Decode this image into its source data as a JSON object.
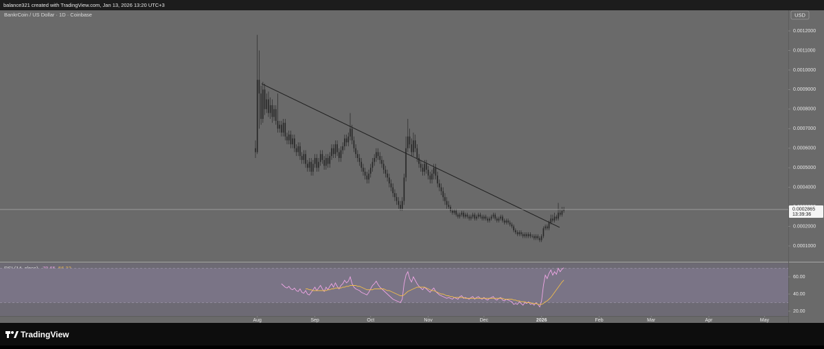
{
  "header": {
    "credit": "balance321 created with TradingView.com, Jan 13, 2026 13:20 UTC+3",
    "symbol": "BankrCoin / US Dollar · 1D · Coinbase",
    "currency": "USD",
    "brand": "TradingView"
  },
  "chart_data": [
    {
      "type": "candlestick",
      "color": "#262626",
      "xlim": [
        -137.5,
        286.8
      ],
      "xticks": [
        {
          "value": 1,
          "label": "Aug"
        },
        {
          "value": 32,
          "label": "Sep"
        },
        {
          "value": 62,
          "label": "Oct"
        },
        {
          "value": 93,
          "label": "Nov"
        },
        {
          "value": 123,
          "label": "Dec"
        },
        {
          "value": 154,
          "label": "2026"
        },
        {
          "value": 185,
          "label": "Feb"
        },
        {
          "value": 213,
          "label": "Mar"
        },
        {
          "value": 244,
          "label": "Apr"
        },
        {
          "value": 274,
          "label": "May"
        }
      ],
      "ylim": [
        2.27e-05,
        0.001302
      ],
      "yticks": [
        {
          "value": 0.0001,
          "label": "0.0001000"
        },
        {
          "value": 0.0002,
          "label": "0.0002000"
        },
        {
          "value": 0.0003,
          "label": "0.0003000"
        },
        {
          "value": 0.0004,
          "label": "0.0004000"
        },
        {
          "value": 0.0005,
          "label": "0.0005000"
        },
        {
          "value": 0.0006,
          "label": "0.0006000"
        },
        {
          "value": 0.0007,
          "label": "0.0007000"
        },
        {
          "value": 0.0008,
          "label": "0.0008000"
        },
        {
          "value": 0.0009,
          "label": "0.0009000"
        },
        {
          "value": 0.001,
          "label": "0.0010000"
        },
        {
          "value": 0.0011,
          "label": "0.0011000"
        },
        {
          "value": 0.0012,
          "label": "0.0012000"
        }
      ],
      "open": [
        0.0006,
        0.00058,
        0.00095,
        0.00088,
        0.00075,
        0.0009,
        0.0008,
        0.00085,
        0.00078,
        0.00082,
        0.00076,
        0.0008,
        0.00074,
        0.0007,
        0.00072,
        0.00068,
        0.00073,
        0.00066,
        0.00064,
        0.00067,
        0.00062,
        0.00065,
        0.0006,
        0.00058,
        0.00061,
        0.00056,
        0.00054,
        0.00057,
        0.00052,
        0.0005,
        0.00053,
        0.00048,
        0.00052,
        0.00055,
        0.0005,
        0.00053,
        0.00057,
        0.00054,
        0.00051,
        0.00055,
        0.00052,
        0.00056,
        0.0006,
        0.00057,
        0.00062,
        0.00058,
        0.00055,
        0.00059,
        0.00061,
        0.00065,
        0.00063,
        0.00066,
        0.0007,
        0.00064,
        0.0006,
        0.00057,
        0.00055,
        0.00053,
        0.0005,
        0.00048,
        0.00046,
        0.00044,
        0.00047,
        0.0005,
        0.00053,
        0.00055,
        0.00058,
        0.00056,
        0.00054,
        0.00052,
        0.00049,
        0.00047,
        0.00045,
        0.00042,
        0.0004,
        0.00037,
        0.00035,
        0.00033,
        0.00031,
        0.00029,
        0.00033,
        0.00045,
        0.0006,
        0.00066,
        0.00062,
        0.00058,
        0.00064,
        0.0006,
        0.00055,
        0.00052,
        0.0005,
        0.00048,
        0.00052,
        0.00049,
        0.00046,
        0.00044,
        0.00047,
        0.0005,
        0.00046,
        0.00042,
        0.0004,
        0.00038,
        0.00035,
        0.00033,
        0.00031,
        0.0003,
        0.00028,
        0.00027,
        0.00028,
        0.00026,
        0.00025,
        0.00026,
        0.00027,
        0.00025,
        0.00026,
        0.00025,
        0.00024,
        0.00025,
        0.00026,
        0.00024,
        0.00025,
        0.00026,
        0.00025,
        0.00024,
        0.00025,
        0.00024,
        0.00023,
        0.00024,
        0.00025,
        0.00026,
        0.00024,
        0.00023,
        0.00024,
        0.00025,
        0.00023,
        0.00022,
        0.00023,
        0.00022,
        0.00021,
        0.0002,
        0.00018,
        0.00017,
        0.00016,
        0.00017,
        0.00016,
        0.00015,
        0.00016,
        0.00015,
        0.00016,
        0.00015,
        0.00015,
        0.00014,
        0.00015,
        0.00014,
        0.00013,
        0.00015,
        0.00019,
        0.0002,
        0.00019,
        0.00022,
        0.00024,
        0.00023,
        0.00025,
        0.00024,
        0.00027,
        0.00026,
        0.00028
      ],
      "high": [
        0.00064,
        0.00118,
        0.0011,
        0.00092,
        0.00094,
        0.00093,
        0.00088,
        0.00089,
        0.00086,
        0.00085,
        0.00082,
        0.00082,
        0.00088,
        0.00074,
        0.00074,
        0.00075,
        0.00075,
        0.00068,
        0.00069,
        0.00069,
        0.00067,
        0.00067,
        0.00062,
        0.00063,
        0.00063,
        0.00058,
        0.00059,
        0.00059,
        0.00054,
        0.00055,
        0.00055,
        0.00054,
        0.00057,
        0.00057,
        0.00055,
        0.00059,
        0.00059,
        0.00056,
        0.00057,
        0.00057,
        0.00058,
        0.00062,
        0.00062,
        0.00064,
        0.00064,
        0.0006,
        0.00061,
        0.00063,
        0.00067,
        0.00067,
        0.00068,
        0.00078,
        0.00072,
        0.00066,
        0.00062,
        0.00059,
        0.00057,
        0.00055,
        0.00052,
        0.0005,
        0.00048,
        0.00049,
        0.00052,
        0.00055,
        0.00057,
        0.0006,
        0.0006,
        0.00058,
        0.00056,
        0.00054,
        0.00051,
        0.00049,
        0.00047,
        0.00044,
        0.00042,
        0.00039,
        0.00037,
        0.00035,
        0.00033,
        0.00035,
        0.00047,
        0.00066,
        0.00075,
        0.0007,
        0.00065,
        0.00068,
        0.00067,
        0.00062,
        0.00057,
        0.00054,
        0.00052,
        0.00054,
        0.00054,
        0.00051,
        0.00048,
        0.00049,
        0.00052,
        0.00052,
        0.00048,
        0.00044,
        0.00042,
        0.0004,
        0.00037,
        0.00035,
        0.00033,
        0.00031,
        0.00029,
        0.00029,
        0.00029,
        0.00027,
        0.00027,
        0.00028,
        0.00028,
        0.00027,
        0.00027,
        0.00026,
        0.00026,
        0.00027,
        0.00027,
        0.00026,
        0.00027,
        0.00027,
        0.00026,
        0.00026,
        0.00026,
        0.00025,
        0.00025,
        0.00026,
        0.00027,
        0.00027,
        0.00025,
        0.00025,
        0.00026,
        0.00026,
        0.00024,
        0.00024,
        0.00024,
        0.00023,
        0.00022,
        0.00021,
        0.00019,
        0.00018,
        0.00018,
        0.00018,
        0.00017,
        0.00017,
        0.00017,
        0.00017,
        0.00017,
        0.00016,
        0.00016,
        0.00016,
        0.00016,
        0.00015,
        0.00016,
        0.0002,
        0.00021,
        0.00021,
        0.00023,
        0.00026,
        0.00026,
        0.00027,
        0.00026,
        0.00032,
        0.00029,
        0.0003,
        0.0003
      ],
      "low": [
        0.00055,
        0.00057,
        0.0007,
        0.00072,
        0.00073,
        0.00077,
        0.00078,
        0.00076,
        0.00075,
        0.00073,
        0.00074,
        0.00072,
        0.00068,
        0.00068,
        0.00066,
        0.00066,
        0.00064,
        0.00062,
        0.00062,
        0.0006,
        0.0006,
        0.00058,
        0.00056,
        0.00056,
        0.00054,
        0.00052,
        0.00052,
        0.0005,
        0.00048,
        0.00048,
        0.00046,
        0.00046,
        0.0005,
        0.00048,
        0.00048,
        0.00051,
        0.00052,
        0.00049,
        0.00049,
        0.0005,
        0.0005,
        0.00054,
        0.00055,
        0.00055,
        0.00056,
        0.00053,
        0.00053,
        0.00057,
        0.00059,
        0.00061,
        0.00061,
        0.00064,
        0.00062,
        0.00058,
        0.00055,
        0.00053,
        0.00051,
        0.00048,
        0.00046,
        0.00044,
        0.00042,
        0.00042,
        0.00045,
        0.00048,
        0.00051,
        0.00053,
        0.00054,
        0.00052,
        0.0005,
        0.00047,
        0.00045,
        0.00043,
        0.0004,
        0.00038,
        0.00035,
        0.00033,
        0.00031,
        0.00029,
        0.00028,
        0.00028,
        0.00031,
        0.00043,
        0.00058,
        0.0006,
        0.00056,
        0.00056,
        0.00058,
        0.00053,
        0.0005,
        0.00048,
        0.00046,
        0.00046,
        0.00047,
        0.00044,
        0.00042,
        0.00042,
        0.00044,
        0.00044,
        0.0004,
        0.00038,
        0.00036,
        0.00033,
        0.00031,
        0.00029,
        0.00029,
        0.00027,
        0.00026,
        0.00026,
        0.00025,
        0.00024,
        0.00024,
        0.00025,
        0.00024,
        0.00024,
        0.00024,
        0.00023,
        0.00023,
        0.00024,
        0.00023,
        0.00023,
        0.00024,
        0.00024,
        0.00023,
        0.00023,
        0.00023,
        0.00022,
        0.00022,
        0.00023,
        0.00024,
        0.00023,
        0.00022,
        0.00022,
        0.00023,
        0.00022,
        0.00021,
        0.00021,
        0.00021,
        0.0002,
        0.00019,
        0.00017,
        0.00016,
        0.00015,
        0.00015,
        0.00015,
        0.00014,
        0.00014,
        0.00014,
        0.00014,
        0.00014,
        0.00014,
        0.00013,
        0.00013,
        0.00013,
        0.00012,
        0.00012,
        0.00014,
        0.00018,
        0.00018,
        0.00018,
        0.00021,
        0.00022,
        0.00022,
        0.00023,
        0.00023,
        0.00025,
        0.00025,
        0.00027
      ],
      "close": [
        0.00058,
        0.00095,
        0.00088,
        0.00075,
        0.0009,
        0.0008,
        0.00085,
        0.00078,
        0.00082,
        0.00076,
        0.0008,
        0.00074,
        0.0007,
        0.00072,
        0.00068,
        0.00073,
        0.00066,
        0.00064,
        0.00067,
        0.00062,
        0.00065,
        0.0006,
        0.00058,
        0.00061,
        0.00056,
        0.00054,
        0.00057,
        0.00052,
        0.0005,
        0.00053,
        0.00048,
        0.00052,
        0.00055,
        0.0005,
        0.00053,
        0.00057,
        0.00054,
        0.00051,
        0.00055,
        0.00052,
        0.00056,
        0.0006,
        0.00057,
        0.00062,
        0.00058,
        0.00055,
        0.00059,
        0.00061,
        0.00065,
        0.00063,
        0.00066,
        0.0007,
        0.00064,
        0.0006,
        0.00057,
        0.00055,
        0.00053,
        0.0005,
        0.00048,
        0.00046,
        0.00044,
        0.00047,
        0.0005,
        0.00053,
        0.00055,
        0.00058,
        0.00056,
        0.00054,
        0.00052,
        0.00049,
        0.00047,
        0.00045,
        0.00042,
        0.0004,
        0.00037,
        0.00035,
        0.00033,
        0.00031,
        0.00029,
        0.00033,
        0.00045,
        0.0006,
        0.00066,
        0.00062,
        0.00058,
        0.00064,
        0.0006,
        0.00055,
        0.00052,
        0.0005,
        0.00048,
        0.00052,
        0.00049,
        0.00046,
        0.00044,
        0.00047,
        0.0005,
        0.00046,
        0.00042,
        0.0004,
        0.00038,
        0.00035,
        0.00033,
        0.00031,
        0.0003,
        0.00028,
        0.00027,
        0.00028,
        0.00026,
        0.00025,
        0.00026,
        0.00027,
        0.00025,
        0.00026,
        0.00025,
        0.00024,
        0.00025,
        0.00026,
        0.00024,
        0.00025,
        0.00026,
        0.00025,
        0.00024,
        0.00025,
        0.00024,
        0.00023,
        0.00024,
        0.00025,
        0.00026,
        0.00024,
        0.00023,
        0.00024,
        0.00025,
        0.00023,
        0.00022,
        0.00023,
        0.00022,
        0.00021,
        0.0002,
        0.00018,
        0.00017,
        0.00016,
        0.00017,
        0.00016,
        0.00015,
        0.00016,
        0.00015,
        0.00016,
        0.00015,
        0.00015,
        0.00014,
        0.00015,
        0.00014,
        0.00013,
        0.00015,
        0.00019,
        0.0002,
        0.00019,
        0.00022,
        0.00024,
        0.00023,
        0.00025,
        0.00024,
        0.00027,
        0.00026,
        0.00028,
        0.0002865
      ],
      "last_price": {
        "value": 0.0002865,
        "label": "0.0002865",
        "countdown": "13:39:36"
      },
      "trendline": {
        "x": [
          3.3,
          163.7
        ],
        "values": [
          0.00093,
          0.000195
        ]
      }
    },
    {
      "type": "line",
      "title": "RSI (14, close)",
      "ylim": [
        14.4,
        76
      ],
      "yticks": [
        {
          "value": 20,
          "label": "20.00"
        },
        {
          "value": 40,
          "label": "40.00"
        },
        {
          "value": 60,
          "label": "60.00"
        }
      ],
      "band": [
        30,
        70
      ],
      "series": [
        {
          "color": "#f0a6e6",
          "values": [
            null,
            null,
            null,
            null,
            null,
            null,
            null,
            null,
            null,
            null,
            null,
            null,
            null,
            null,
            52,
            50,
            48,
            47,
            49,
            46,
            45,
            47,
            44,
            43,
            46,
            42,
            41,
            44,
            40,
            39,
            42,
            45,
            48,
            44,
            47,
            50,
            46,
            43,
            48,
            45,
            49,
            52,
            48,
            53,
            49,
            46,
            50,
            52,
            56,
            53,
            55,
            60,
            52,
            48,
            46,
            45,
            44,
            42,
            41,
            40,
            39,
            42,
            46,
            50,
            52,
            55,
            51,
            48,
            46,
            44,
            42,
            40,
            38,
            36,
            34,
            33,
            32,
            31,
            30,
            34,
            52,
            62,
            66,
            58,
            54,
            60,
            56,
            52,
            49,
            47,
            45,
            48,
            46,
            44,
            42,
            45,
            47,
            43,
            41,
            39,
            38,
            37,
            36,
            35,
            36,
            35,
            34,
            36,
            35,
            34,
            37,
            38,
            35,
            36,
            35,
            34,
            36,
            37,
            34,
            36,
            37,
            35,
            34,
            36,
            34,
            33,
            35,
            36,
            37,
            34,
            33,
            35,
            36,
            33,
            32,
            34,
            33,
            32,
            31,
            28,
            29,
            28,
            31,
            29,
            27,
            30,
            29,
            31,
            28,
            29,
            27,
            30,
            28,
            25,
            32,
            50,
            62,
            58,
            64,
            68,
            62,
            66,
            63,
            70,
            66,
            69,
            70.65
          ]
        },
        {
          "color": "#f2bd4b",
          "values": [
            null,
            null,
            null,
            null,
            null,
            null,
            null,
            null,
            null,
            null,
            null,
            null,
            null,
            null,
            null,
            null,
            null,
            null,
            null,
            null,
            null,
            null,
            null,
            null,
            null,
            null,
            null,
            46,
            46,
            45,
            45,
            44,
            44,
            44,
            44,
            44,
            44,
            44,
            44,
            45,
            45,
            46,
            46,
            47,
            47,
            47,
            47,
            48,
            48,
            49,
            49,
            50,
            50,
            50,
            50,
            49,
            49,
            48,
            47,
            46,
            45,
            45,
            45,
            45,
            46,
            46,
            46,
            46,
            46,
            46,
            45,
            44,
            44,
            43,
            42,
            41,
            40,
            39,
            38,
            38,
            39,
            41,
            43,
            44,
            45,
            46,
            47,
            48,
            48,
            48,
            48,
            48,
            47,
            46,
            45,
            44,
            44,
            43,
            42,
            41,
            40,
            40,
            39,
            38,
            38,
            37,
            37,
            36,
            36,
            36,
            36,
            36,
            36,
            35,
            35,
            35,
            35,
            35,
            35,
            35,
            35,
            35,
            35,
            35,
            35,
            35,
            35,
            35,
            35,
            35,
            35,
            35,
            35,
            35,
            34,
            34,
            34,
            34,
            34,
            33,
            33,
            32,
            32,
            31,
            31,
            31,
            30,
            30,
            30,
            29,
            29,
            29,
            28,
            28,
            28,
            29,
            31,
            32,
            34,
            36,
            39,
            42,
            45,
            48,
            51,
            54,
            56.22
          ]
        }
      ]
    }
  ]
}
